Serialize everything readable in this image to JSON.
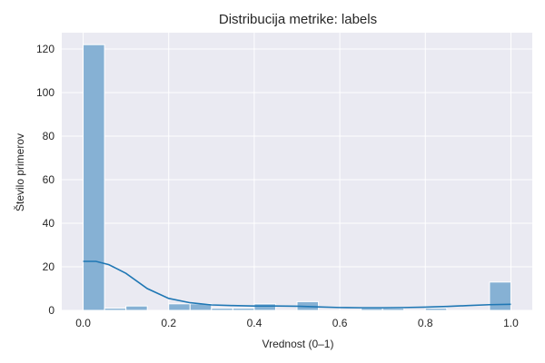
{
  "chart_data": {
    "type": "bar",
    "title": "Distribucija metrike: labels",
    "xlabel": "Vrednost (0–1)",
    "ylabel": "Število primerov",
    "xlim": [
      -0.05,
      1.05
    ],
    "ylim": [
      0,
      127.5
    ],
    "xticks": [
      "0.0",
      "0.2",
      "0.4",
      "0.6",
      "0.8",
      "1.0"
    ],
    "yticks": [
      "0",
      "20",
      "40",
      "60",
      "80",
      "100",
      "120"
    ],
    "grid": true,
    "bin_width": 0.05,
    "bins": [
      {
        "x0": 0.0,
        "x1": 0.05,
        "count": 122
      },
      {
        "x0": 0.05,
        "x1": 0.1,
        "count": 1
      },
      {
        "x0": 0.1,
        "x1": 0.15,
        "count": 2
      },
      {
        "x0": 0.15,
        "x1": 0.2,
        "count": 0
      },
      {
        "x0": 0.2,
        "x1": 0.25,
        "count": 3
      },
      {
        "x0": 0.25,
        "x1": 0.3,
        "count": 3
      },
      {
        "x0": 0.3,
        "x1": 0.35,
        "count": 1
      },
      {
        "x0": 0.35,
        "x1": 0.4,
        "count": 1
      },
      {
        "x0": 0.4,
        "x1": 0.45,
        "count": 3
      },
      {
        "x0": 0.45,
        "x1": 0.5,
        "count": 0
      },
      {
        "x0": 0.5,
        "x1": 0.55,
        "count": 4
      },
      {
        "x0": 0.55,
        "x1": 0.6,
        "count": 0
      },
      {
        "x0": 0.6,
        "x1": 0.65,
        "count": 0
      },
      {
        "x0": 0.65,
        "x1": 0.7,
        "count": 1
      },
      {
        "x0": 0.7,
        "x1": 0.75,
        "count": 1
      },
      {
        "x0": 0.75,
        "x1": 0.8,
        "count": 0
      },
      {
        "x0": 0.8,
        "x1": 0.85,
        "count": 1
      },
      {
        "x0": 0.85,
        "x1": 0.9,
        "count": 0
      },
      {
        "x0": 0.9,
        "x1": 0.95,
        "count": 0
      },
      {
        "x0": 0.95,
        "x1": 1.0,
        "count": 13
      }
    ],
    "kde": {
      "x": [
        0.0,
        0.03,
        0.06,
        0.1,
        0.15,
        0.2,
        0.25,
        0.3,
        0.35,
        0.4,
        0.45,
        0.5,
        0.55,
        0.6,
        0.65,
        0.7,
        0.75,
        0.8,
        0.85,
        0.9,
        0.95,
        1.0
      ],
      "y": [
        22.5,
        22.5,
        21,
        17,
        10,
        5.5,
        3.5,
        2.5,
        2.2,
        2.0,
        2.0,
        1.9,
        1.6,
        1.3,
        1.2,
        1.2,
        1.3,
        1.5,
        1.8,
        2.2,
        2.6,
        2.8
      ]
    },
    "colors": {
      "bar_fill": "#86b1d4",
      "bar_stroke": "#ffffff",
      "kde_line": "#1f77b4",
      "plot_bg": "#eaeaf2",
      "grid": "#ffffff"
    }
  }
}
